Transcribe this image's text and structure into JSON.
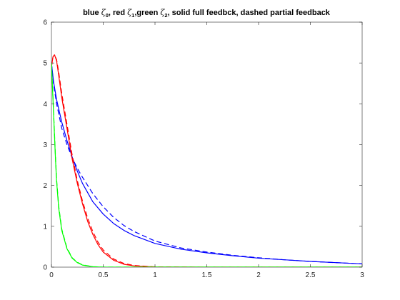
{
  "chart_data": {
    "type": "line",
    "title": {
      "parts": [
        {
          "text": "blue "
        },
        {
          "text": "ζ",
          "zeta": true
        },
        {
          "text": "0",
          "sub": true
        },
        {
          "text": ", red "
        },
        {
          "text": "ζ",
          "zeta": true
        },
        {
          "text": "1",
          "sub": true
        },
        {
          "text": ",green "
        },
        {
          "text": "ζ",
          "zeta": true
        },
        {
          "text": "2",
          "sub": true
        },
        {
          "text": ", solid full feedbck, dashed partial feedback"
        }
      ]
    },
    "xlabel": "",
    "ylabel": "",
    "xlim": [
      0,
      3
    ],
    "ylim": [
      0,
      6
    ],
    "x_ticks": [
      0,
      0.5,
      1,
      1.5,
      2,
      2.5,
      3
    ],
    "x_tick_labels": [
      "0",
      "0.5",
      "1",
      "1.5",
      "2",
      "2.5",
      "3"
    ],
    "y_ticks": [
      0,
      1,
      2,
      3,
      4,
      5,
      6
    ],
    "y_tick_labels": [
      "0",
      "1",
      "2",
      "3",
      "4",
      "5",
      "6"
    ],
    "grid": false,
    "colors": {
      "blue": "#0000ff",
      "red": "#ff0000",
      "green": "#00ff00",
      "axis": "#262626"
    },
    "series": [
      {
        "color": "#0000ff",
        "dash": false,
        "points": [
          [
            0,
            5.0
          ],
          [
            0.02,
            4.55
          ],
          [
            0.05,
            4.1
          ],
          [
            0.1,
            3.55
          ],
          [
            0.15,
            3.1
          ],
          [
            0.2,
            2.7
          ],
          [
            0.25,
            2.35
          ],
          [
            0.3,
            2.05
          ],
          [
            0.4,
            1.6
          ],
          [
            0.5,
            1.3
          ],
          [
            0.6,
            1.07
          ],
          [
            0.7,
            0.9
          ],
          [
            0.8,
            0.77
          ],
          [
            1.0,
            0.58
          ],
          [
            1.25,
            0.44
          ],
          [
            1.5,
            0.35
          ],
          [
            1.75,
            0.28
          ],
          [
            2.0,
            0.22
          ],
          [
            2.25,
            0.18
          ],
          [
            2.5,
            0.14
          ],
          [
            2.75,
            0.11
          ],
          [
            3.0,
            0.08
          ]
        ]
      },
      {
        "color": "#0000ff",
        "dash": true,
        "points": [
          [
            0,
            5.0
          ],
          [
            0.02,
            4.5
          ],
          [
            0.05,
            4.0
          ],
          [
            0.1,
            3.4
          ],
          [
            0.15,
            3.0
          ],
          [
            0.2,
            2.68
          ],
          [
            0.25,
            2.42
          ],
          [
            0.3,
            2.2
          ],
          [
            0.4,
            1.8
          ],
          [
            0.5,
            1.48
          ],
          [
            0.6,
            1.22
          ],
          [
            0.7,
            1.02
          ],
          [
            0.8,
            0.87
          ],
          [
            1.0,
            0.64
          ],
          [
            1.25,
            0.47
          ],
          [
            1.5,
            0.37
          ],
          [
            1.75,
            0.29
          ],
          [
            2.0,
            0.23
          ],
          [
            2.25,
            0.18
          ],
          [
            2.5,
            0.14
          ],
          [
            2.75,
            0.11
          ],
          [
            3.0,
            0.08
          ]
        ]
      },
      {
        "color": "#ff0000",
        "dash": false,
        "points": [
          [
            0,
            4.9
          ],
          [
            0.015,
            5.15
          ],
          [
            0.03,
            5.2
          ],
          [
            0.05,
            5.05
          ],
          [
            0.07,
            4.7
          ],
          [
            0.1,
            4.15
          ],
          [
            0.15,
            3.4
          ],
          [
            0.2,
            2.65
          ],
          [
            0.25,
            2.05
          ],
          [
            0.3,
            1.55
          ],
          [
            0.35,
            1.12
          ],
          [
            0.4,
            0.8
          ],
          [
            0.45,
            0.55
          ],
          [
            0.5,
            0.37
          ],
          [
            0.6,
            0.17
          ],
          [
            0.7,
            0.07
          ],
          [
            0.8,
            0.03
          ],
          [
            1.0,
            0.005
          ],
          [
            1.5,
            0.0
          ],
          [
            2.0,
            0.0
          ],
          [
            2.5,
            0.0
          ],
          [
            3.0,
            0.0
          ]
        ]
      },
      {
        "color": "#ff0000",
        "dash": true,
        "points": [
          [
            0,
            4.9
          ],
          [
            0.015,
            5.15
          ],
          [
            0.03,
            5.2
          ],
          [
            0.05,
            5.08
          ],
          [
            0.07,
            4.78
          ],
          [
            0.1,
            4.25
          ],
          [
            0.15,
            3.5
          ],
          [
            0.2,
            2.75
          ],
          [
            0.25,
            2.12
          ],
          [
            0.3,
            1.62
          ],
          [
            0.35,
            1.2
          ],
          [
            0.4,
            0.87
          ],
          [
            0.45,
            0.61
          ],
          [
            0.5,
            0.42
          ],
          [
            0.6,
            0.2
          ],
          [
            0.7,
            0.09
          ],
          [
            0.8,
            0.04
          ],
          [
            1.0,
            0.006
          ],
          [
            1.5,
            0.0
          ],
          [
            2.0,
            0.0
          ],
          [
            2.5,
            0.0
          ],
          [
            3.0,
            0.0
          ]
        ]
      },
      {
        "color": "#00ff00",
        "dash": false,
        "points": [
          [
            0,
            5.0
          ],
          [
            0.01,
            4.4
          ],
          [
            0.02,
            3.8
          ],
          [
            0.03,
            3.2
          ],
          [
            0.04,
            2.6
          ],
          [
            0.05,
            2.1
          ],
          [
            0.07,
            1.45
          ],
          [
            0.1,
            0.9
          ],
          [
            0.15,
            0.45
          ],
          [
            0.2,
            0.22
          ],
          [
            0.25,
            0.11
          ],
          [
            0.3,
            0.05
          ],
          [
            0.4,
            0.01
          ],
          [
            0.5,
            0.0
          ],
          [
            1.0,
            0.0
          ],
          [
            2.0,
            0.0
          ],
          [
            3.0,
            0.0
          ]
        ]
      },
      {
        "color": "#00ff00",
        "dash": true,
        "points": [
          [
            0,
            5.0
          ],
          [
            0.01,
            4.45
          ],
          [
            0.02,
            3.85
          ],
          [
            0.03,
            3.25
          ],
          [
            0.04,
            2.65
          ],
          [
            0.05,
            2.15
          ],
          [
            0.07,
            1.5
          ],
          [
            0.1,
            0.93
          ],
          [
            0.15,
            0.47
          ],
          [
            0.2,
            0.23
          ],
          [
            0.25,
            0.12
          ],
          [
            0.3,
            0.055
          ],
          [
            0.4,
            0.012
          ],
          [
            0.5,
            0.0
          ],
          [
            1.0,
            0.0
          ],
          [
            2.0,
            0.0
          ],
          [
            3.0,
            0.0
          ]
        ]
      }
    ]
  }
}
